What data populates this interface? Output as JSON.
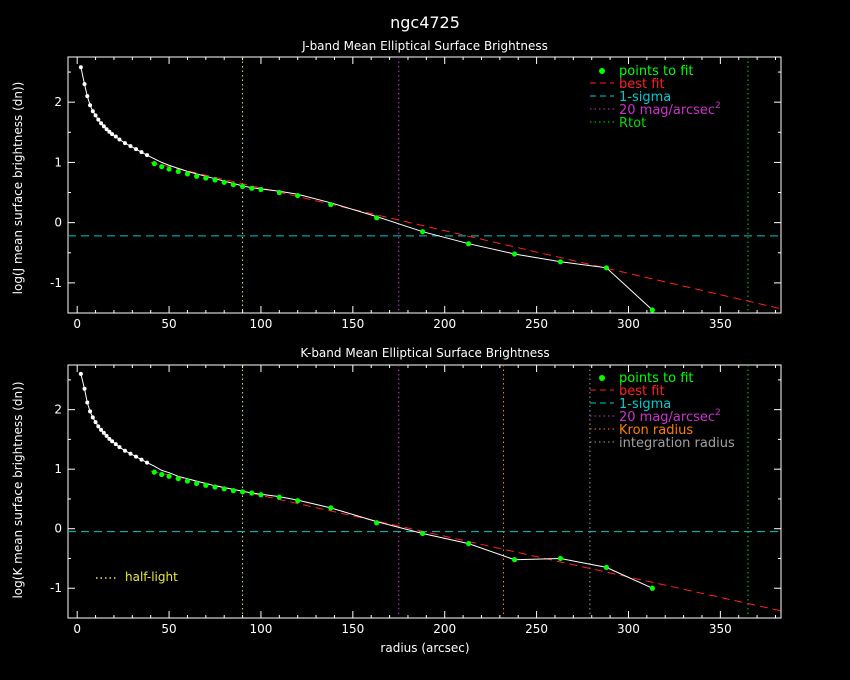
{
  "figure": {
    "title": "ngc4725",
    "xlabel": "radius (arcsec)"
  },
  "colors": {
    "background": "#000000",
    "axes": "#ffffff",
    "fit_points": "#00ff00",
    "best_fit": "#ff2020",
    "sigma": "#00cccc",
    "mag20": "#cc33cc",
    "rtot": "#00dd00",
    "half_light": "#e8e840",
    "kron": "#ff7f00",
    "integration": "#a0a0a0"
  },
  "chart_data": [
    {
      "type": "line",
      "title": "J-band Mean Elliptical Surface Brightness",
      "xlabel": "",
      "ylabel": "log(J mean surface brightness (dn))",
      "xlim": [
        -5,
        383
      ],
      "ylim": [
        -1.5,
        2.75
      ],
      "xticks": [
        0,
        50,
        100,
        150,
        200,
        250,
        300,
        350
      ],
      "yticks": [
        -1,
        0,
        1,
        2
      ],
      "profile": {
        "x": [
          2,
          4,
          5.5,
          7,
          8.5,
          10,
          11.5,
          13,
          14.5,
          16,
          17.5,
          19,
          21,
          23,
          26,
          29,
          32,
          35,
          38,
          42,
          46,
          50,
          55,
          60,
          65,
          70,
          75,
          80,
          85,
          90,
          95,
          100,
          110,
          120,
          138,
          163,
          188,
          213,
          238,
          263,
          288,
          313
        ],
        "y": [
          2.58,
          2.3,
          2.1,
          1.95,
          1.85,
          1.78,
          1.71,
          1.65,
          1.6,
          1.55,
          1.51,
          1.47,
          1.43,
          1.38,
          1.32,
          1.27,
          1.22,
          1.17,
          1.12,
          1.06,
          1.0,
          0.95,
          0.9,
          0.85,
          0.81,
          0.77,
          0.73,
          0.69,
          0.65,
          0.61,
          0.58,
          0.56,
          0.52,
          0.47,
          0.33,
          0.1,
          -0.15,
          -0.35,
          -0.52,
          -0.65,
          -0.75,
          -1.45
        ]
      },
      "fit_points": {
        "x": [
          42,
          46,
          50,
          55,
          60,
          65,
          70,
          75,
          80,
          85,
          90,
          95,
          100,
          110,
          120,
          138,
          163,
          188,
          213,
          238,
          263,
          288,
          313
        ],
        "y": [
          0.98,
          0.93,
          0.89,
          0.85,
          0.81,
          0.77,
          0.74,
          0.71,
          0.67,
          0.63,
          0.6,
          0.57,
          0.55,
          0.5,
          0.45,
          0.3,
          0.08,
          -0.15,
          -0.35,
          -0.52,
          -0.65,
          -0.75,
          -1.45
        ]
      },
      "best_fit": {
        "x0": 40,
        "y0": 1.0,
        "x1": 383,
        "y1": -1.43
      },
      "sigma_level": -0.22,
      "mag20_radius": 175,
      "half_light_radius": 90,
      "rtot_radius": 365,
      "legend": {
        "position": "top-right",
        "items": [
          {
            "label": "points to fit",
            "style": "marker",
            "color": "#00ff00"
          },
          {
            "label": "best fit",
            "style": "dashed",
            "color": "#ff2020"
          },
          {
            "label": "1-sigma",
            "style": "dashed",
            "color": "#00cccc"
          },
          {
            "label": "20 mag/arcsec",
            "sup": "2",
            "style": "dotted",
            "color": "#cc33cc"
          },
          {
            "label": "Rtot",
            "style": "dotted",
            "color": "#00dd00"
          }
        ]
      }
    },
    {
      "type": "line",
      "title": "K-band Mean Elliptical Surface Brightness",
      "xlabel": "radius (arcsec)",
      "ylabel": "log(K mean surface brightness (dn))",
      "xlim": [
        -5,
        383
      ],
      "ylim": [
        -1.5,
        2.75
      ],
      "xticks": [
        0,
        50,
        100,
        150,
        200,
        250,
        300,
        350
      ],
      "yticks": [
        -1,
        0,
        1,
        2
      ],
      "profile": {
        "x": [
          2,
          4,
          5.5,
          7,
          8.5,
          10,
          11.5,
          13,
          14.5,
          16,
          17.5,
          19,
          21,
          23,
          26,
          29,
          32,
          35,
          38,
          42,
          46,
          50,
          55,
          60,
          65,
          70,
          75,
          80,
          85,
          90,
          95,
          100,
          110,
          120,
          138,
          163,
          188,
          213,
          238,
          263,
          288,
          313
        ],
        "y": [
          2.6,
          2.35,
          2.12,
          1.97,
          1.87,
          1.79,
          1.72,
          1.66,
          1.61,
          1.56,
          1.51,
          1.47,
          1.42,
          1.37,
          1.31,
          1.26,
          1.21,
          1.16,
          1.11,
          1.05,
          0.98,
          0.94,
          0.88,
          0.84,
          0.8,
          0.76,
          0.72,
          0.69,
          0.66,
          0.63,
          0.6,
          0.58,
          0.54,
          0.48,
          0.35,
          0.12,
          -0.08,
          -0.25,
          -0.52,
          -0.5,
          -0.65,
          -1.0
        ]
      },
      "fit_points": {
        "x": [
          42,
          46,
          50,
          55,
          60,
          65,
          70,
          75,
          80,
          85,
          90,
          95,
          100,
          110,
          120,
          138,
          163,
          188,
          213,
          238,
          263,
          288,
          313
        ],
        "y": [
          0.95,
          0.91,
          0.88,
          0.84,
          0.8,
          0.76,
          0.73,
          0.7,
          0.67,
          0.64,
          0.62,
          0.6,
          0.57,
          0.53,
          0.47,
          0.35,
          0.1,
          -0.08,
          -0.25,
          -0.52,
          -0.5,
          -0.65,
          -1.0
        ]
      },
      "best_fit": {
        "x0": 40,
        "y0": 0.97,
        "x1": 383,
        "y1": -1.38
      },
      "sigma_level": -0.05,
      "mag20_radius": 175,
      "half_light_radius": 90,
      "kron_radius": 232,
      "integration_radius": 279,
      "rtot_radius": 365,
      "annotation": {
        "label": "half-light",
        "color": "#e8e840"
      },
      "legend": {
        "position": "top-right",
        "items": [
          {
            "label": "points to fit",
            "style": "marker",
            "color": "#00ff00"
          },
          {
            "label": "best fit",
            "style": "dashed",
            "color": "#ff2020"
          },
          {
            "label": "1-sigma",
            "style": "dashed",
            "color": "#00cccc"
          },
          {
            "label": "20 mag/arcsec",
            "sup": "2",
            "style": "dotted",
            "color": "#cc33cc"
          },
          {
            "label": "Kron radius",
            "style": "dotted",
            "color": "#ff7f00"
          },
          {
            "label": "integration radius",
            "style": "dotted",
            "color": "#a0a0a0"
          }
        ]
      }
    }
  ]
}
